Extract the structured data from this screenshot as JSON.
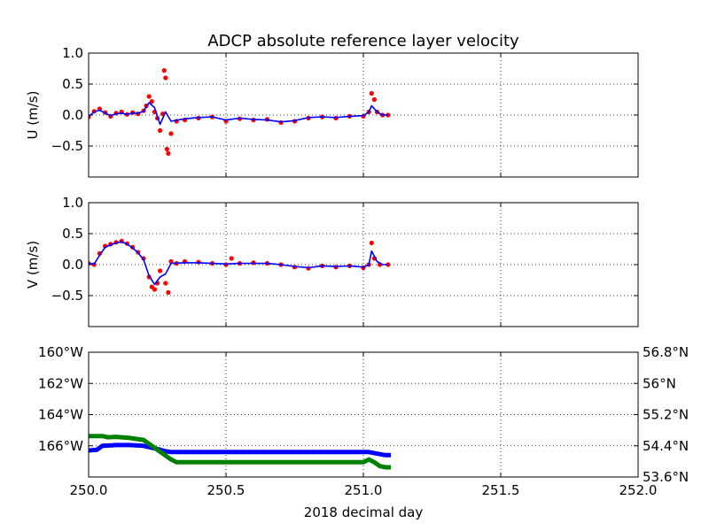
{
  "figure": {
    "title": "ADCP absolute reference layer velocity",
    "xlabel": "2018 decimal day"
  },
  "chart_data": [
    {
      "type": "scatter",
      "ylabel": "U (m/s)",
      "xlim": [
        250.0,
        252.0
      ],
      "ylim": [
        -1.0,
        1.0
      ],
      "xticks": [
        250.0,
        250.5,
        251.0,
        251.5,
        252.0
      ],
      "yticks": [
        -0.5,
        0.0,
        0.5,
        1.0
      ],
      "ytick_labels": [
        "−0.5",
        "0.0",
        "0.5",
        "1.0"
      ],
      "grid": true,
      "series": [
        {
          "kind": "points",
          "color": "#ff0000",
          "x": [
            250.0,
            250.02,
            250.04,
            250.06,
            250.08,
            250.1,
            250.12,
            250.14,
            250.16,
            250.18,
            250.2,
            250.21,
            250.22,
            250.23,
            250.24,
            250.25,
            250.26,
            250.27,
            250.275,
            250.28,
            250.285,
            250.29,
            250.3,
            250.32,
            250.35,
            250.4,
            250.45,
            250.5,
            250.55,
            250.6,
            250.65,
            250.7,
            250.75,
            250.8,
            250.85,
            250.9,
            250.95,
            251.0,
            251.02,
            251.03,
            251.04,
            251.05,
            251.07,
            251.09
          ],
          "y": [
            -0.03,
            0.06,
            0.1,
            0.04,
            -0.02,
            0.03,
            0.05,
            0.01,
            0.04,
            0.02,
            0.07,
            0.15,
            0.3,
            0.22,
            0.05,
            -0.05,
            -0.25,
            0.02,
            0.72,
            0.6,
            -0.55,
            -0.62,
            -0.3,
            -0.1,
            -0.08,
            -0.05,
            -0.03,
            -0.1,
            -0.06,
            -0.08,
            -0.07,
            -0.12,
            -0.1,
            -0.05,
            -0.03,
            -0.05,
            -0.02,
            -0.02,
            0.05,
            0.35,
            0.25,
            0.05,
            0.0,
            0.0
          ]
        },
        {
          "kind": "line",
          "color": "#0000ff",
          "x": [
            250.0,
            250.02,
            250.04,
            250.06,
            250.08,
            250.1,
            250.12,
            250.14,
            250.16,
            250.18,
            250.2,
            250.22,
            250.24,
            250.26,
            250.28,
            250.3,
            250.35,
            250.4,
            250.45,
            250.5,
            250.55,
            250.6,
            250.65,
            250.7,
            250.75,
            250.8,
            250.85,
            250.9,
            250.95,
            251.0,
            251.02,
            251.03,
            251.05,
            251.07,
            251.09
          ],
          "y": [
            -0.02,
            0.05,
            0.08,
            0.03,
            -0.01,
            0.02,
            0.03,
            0.01,
            0.03,
            0.03,
            0.06,
            0.2,
            0.12,
            -0.15,
            0.05,
            -0.1,
            -0.06,
            -0.04,
            -0.03,
            -0.08,
            -0.05,
            -0.07,
            -0.08,
            -0.11,
            -0.09,
            -0.04,
            -0.03,
            -0.04,
            -0.02,
            -0.01,
            0.05,
            0.15,
            0.05,
            0.0,
            0.0
          ]
        }
      ]
    },
    {
      "type": "scatter",
      "ylabel": "V (m/s)",
      "xlim": [
        250.0,
        252.0
      ],
      "ylim": [
        -1.0,
        1.0
      ],
      "xticks": [
        250.0,
        250.5,
        251.0,
        251.5,
        252.0
      ],
      "yticks": [
        -0.5,
        0.0,
        0.5,
        1.0
      ],
      "ytick_labels": [
        "−0.5",
        "0.0",
        "0.5",
        "1.0"
      ],
      "grid": true,
      "series": [
        {
          "kind": "points",
          "color": "#ff0000",
          "x": [
            250.0,
            250.02,
            250.04,
            250.06,
            250.08,
            250.1,
            250.12,
            250.14,
            250.16,
            250.18,
            250.2,
            250.22,
            250.23,
            250.24,
            250.25,
            250.26,
            250.28,
            250.29,
            250.3,
            250.32,
            250.35,
            250.4,
            250.45,
            250.5,
            250.52,
            250.55,
            250.6,
            250.65,
            250.7,
            250.75,
            250.8,
            250.85,
            250.9,
            250.95,
            251.0,
            251.02,
            251.03,
            251.04,
            251.06,
            251.09
          ],
          "y": [
            0.02,
            0.0,
            0.18,
            0.3,
            0.33,
            0.36,
            0.38,
            0.34,
            0.28,
            0.2,
            0.1,
            -0.2,
            -0.36,
            -0.4,
            -0.3,
            -0.1,
            -0.3,
            -0.45,
            0.05,
            0.02,
            0.05,
            0.04,
            0.02,
            0.0,
            0.1,
            0.02,
            0.03,
            0.02,
            0.0,
            -0.04,
            -0.06,
            -0.02,
            -0.04,
            -0.02,
            -0.05,
            0.0,
            0.35,
            0.1,
            0.0,
            0.0
          ]
        },
        {
          "kind": "line",
          "color": "#0000ff",
          "x": [
            250.0,
            250.02,
            250.04,
            250.06,
            250.08,
            250.1,
            250.12,
            250.14,
            250.16,
            250.18,
            250.2,
            250.22,
            250.24,
            250.26,
            250.28,
            250.3,
            250.35,
            250.4,
            250.45,
            250.5,
            250.55,
            250.6,
            250.65,
            250.7,
            250.75,
            250.8,
            250.85,
            250.9,
            250.95,
            251.0,
            251.02,
            251.03,
            251.05,
            251.07,
            251.09
          ],
          "y": [
            0.02,
            0.01,
            0.15,
            0.28,
            0.32,
            0.35,
            0.37,
            0.33,
            0.27,
            0.19,
            0.08,
            -0.18,
            -0.32,
            -0.2,
            -0.15,
            0.02,
            0.03,
            0.03,
            0.02,
            0.01,
            0.02,
            0.02,
            0.02,
            0.0,
            -0.03,
            -0.05,
            -0.02,
            -0.03,
            -0.02,
            -0.04,
            0.0,
            0.22,
            0.05,
            0.0,
            0.0
          ]
        }
      ]
    },
    {
      "type": "line",
      "xlim": [
        250.0,
        252.0
      ],
      "xticks": [
        250.0,
        250.5,
        251.0,
        251.5,
        252.0
      ],
      "xtick_labels": [
        "250.0",
        "250.5",
        "251.0",
        "251.5",
        "252.0"
      ],
      "grid": true,
      "left_axis": {
        "color": "#0000ff",
        "ylim": [
          -168.0,
          -160.0
        ],
        "yticks": [
          -166.0,
          -164.0,
          -162.0,
          -160.0
        ],
        "ytick_labels": [
          "166°W",
          "164°W",
          "162°W",
          "160°W"
        ]
      },
      "right_axis": {
        "color": "#008000",
        "ylim": [
          53.6,
          56.8
        ],
        "yticks": [
          53.6,
          54.4,
          55.2,
          56.0,
          56.8
        ],
        "ytick_labels": [
          "53.6°N",
          "54.4°N",
          "55.2°N",
          "56°N",
          "56.8°N"
        ]
      },
      "series": [
        {
          "axis": "left",
          "color": "#0000ff",
          "x": [
            250.0,
            250.03,
            250.05,
            250.1,
            250.15,
            250.2,
            250.25,
            250.28,
            250.3,
            250.4,
            250.5,
            250.7,
            250.9,
            251.0,
            251.02,
            251.05,
            251.08,
            251.1
          ],
          "y": [
            -166.3,
            -166.25,
            -166.0,
            -165.95,
            -165.95,
            -166.0,
            -166.2,
            -166.35,
            -166.4,
            -166.4,
            -166.4,
            -166.4,
            -166.4,
            -166.4,
            -166.4,
            -166.5,
            -166.6,
            -166.6
          ]
        },
        {
          "axis": "right",
          "color": "#008000",
          "x": [
            250.0,
            250.05,
            250.07,
            250.1,
            250.15,
            250.2,
            250.25,
            250.3,
            250.32,
            250.4,
            250.6,
            250.8,
            251.0,
            251.02,
            251.04,
            251.06,
            251.08,
            251.1
          ],
          "y": [
            54.65,
            54.65,
            54.62,
            54.63,
            54.6,
            54.55,
            54.3,
            54.05,
            53.98,
            53.98,
            53.98,
            53.98,
            53.98,
            54.05,
            53.98,
            53.88,
            53.85,
            53.85
          ]
        }
      ]
    }
  ]
}
